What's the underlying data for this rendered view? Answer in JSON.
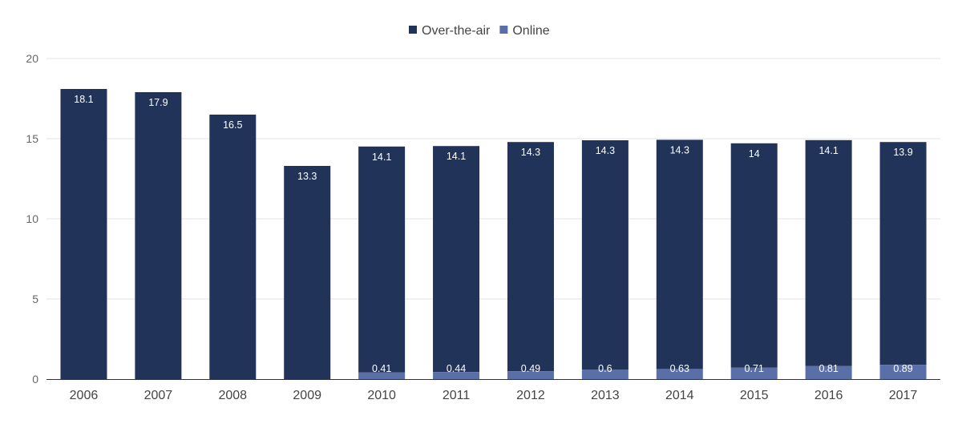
{
  "chart_data": {
    "type": "bar",
    "stacked": true,
    "categories": [
      "2006",
      "2007",
      "2008",
      "2009",
      "2010",
      "2011",
      "2012",
      "2013",
      "2014",
      "2015",
      "2016",
      "2017"
    ],
    "series": [
      {
        "name": "Online",
        "color": "#5a6ea8",
        "values": [
          null,
          null,
          null,
          null,
          0.41,
          0.44,
          0.49,
          0.6,
          0.63,
          0.71,
          0.81,
          0.89
        ]
      },
      {
        "name": "Over-the-air",
        "color": "#22335a",
        "values": [
          18.1,
          17.9,
          16.5,
          13.3,
          14.1,
          14.1,
          14.3,
          14.3,
          14.3,
          14,
          14.1,
          13.9
        ]
      }
    ],
    "legend_order": [
      "Over-the-air",
      "Online"
    ],
    "legend_position": "top-center",
    "ylim": [
      0,
      20
    ],
    "yticks": [
      0,
      5,
      10,
      15,
      20
    ],
    "grid": true,
    "title": "",
    "xlabel": "",
    "ylabel": ""
  }
}
